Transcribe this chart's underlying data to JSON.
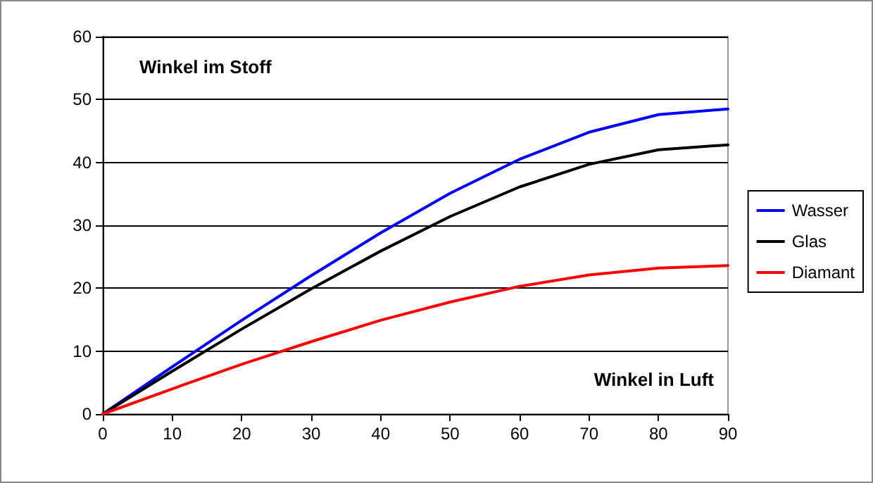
{
  "chart_data": {
    "type": "line",
    "xlabel": "Winkel in Luft",
    "ylabel": "Winkel im Stoff",
    "x": [
      0,
      10,
      20,
      30,
      40,
      50,
      60,
      70,
      80,
      90
    ],
    "series": [
      {
        "name": "Wasser",
        "color": "#0000ff",
        "values": [
          0,
          7.5,
          14.9,
          22,
          28.8,
          35.1,
          40.5,
          44.8,
          47.6,
          48.5
        ]
      },
      {
        "name": "Glas",
        "color": "#000000",
        "values": [
          0,
          6.8,
          13.5,
          19.9,
          25.9,
          31.4,
          36.1,
          39.7,
          42,
          42.8
        ]
      },
      {
        "name": "Diamant",
        "color": "#ff0000",
        "values": [
          0,
          4,
          7.9,
          11.5,
          14.9,
          17.8,
          20.3,
          22.1,
          23.2,
          23.6
        ]
      }
    ],
    "xlim": [
      0,
      90
    ],
    "xticks": [
      0,
      10,
      20,
      30,
      40,
      50,
      60,
      70,
      80,
      90
    ],
    "ylim": [
      0,
      60
    ],
    "yticks": [
      0,
      10,
      20,
      30,
      40,
      50,
      60
    ],
    "grid": "y",
    "legend": "right",
    "marker": "none",
    "line_style": "solid"
  }
}
